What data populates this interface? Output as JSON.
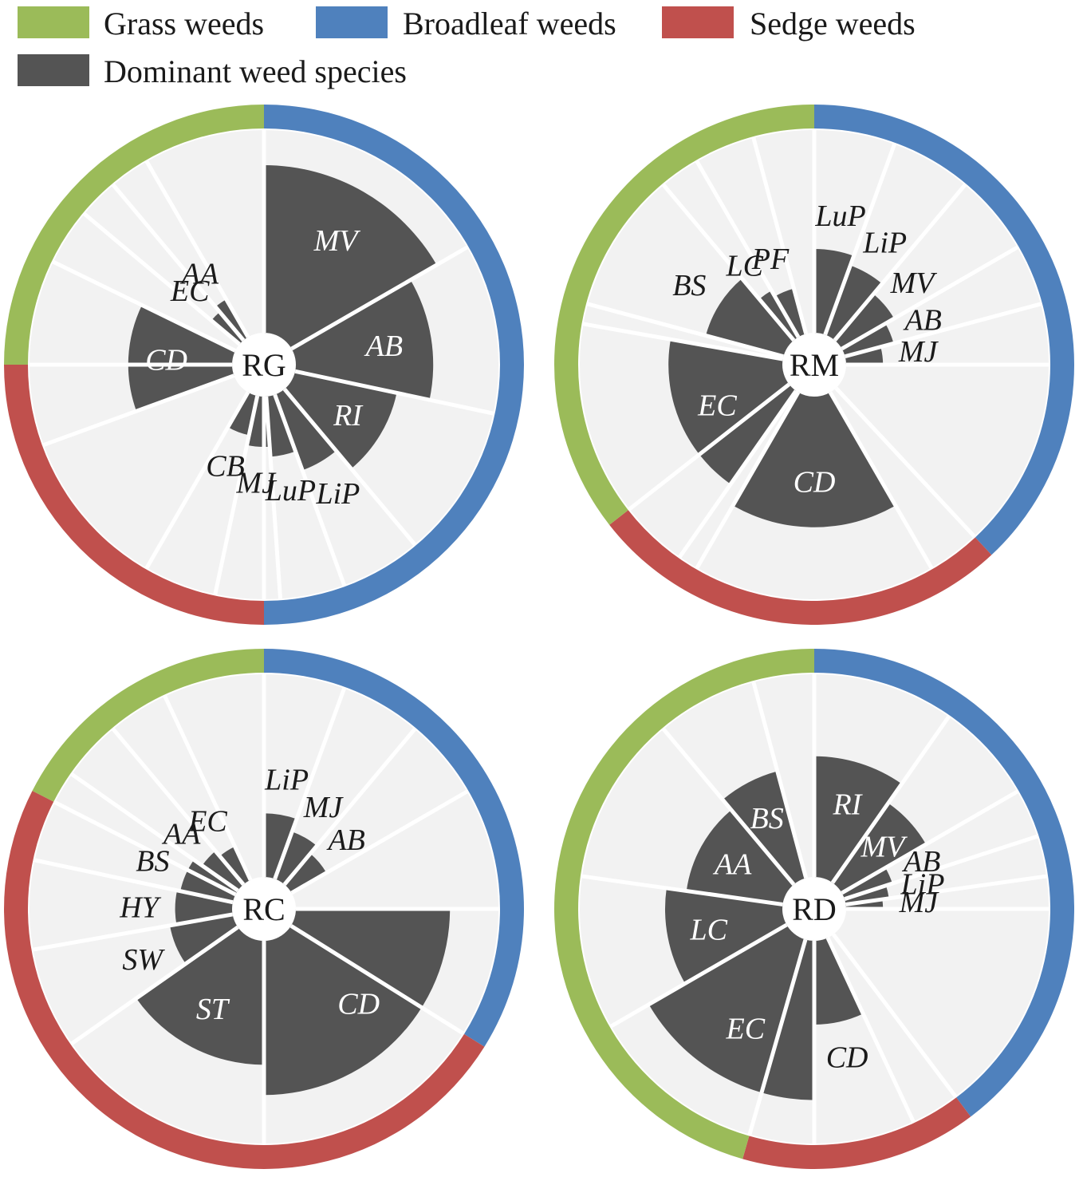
{
  "legend": [
    {
      "label": "Grass weeds",
      "color": "#9bbb59"
    },
    {
      "label": "Broadleaf weeds",
      "color": "#4f81bd"
    },
    {
      "label": "Sedge weeds",
      "color": "#c0504d"
    },
    {
      "label": "Dominant weed species",
      "color": "#545454"
    }
  ],
  "colors": {
    "grass": "#9bbb59",
    "broadleaf": "#4f81bd",
    "sedge": "#c0504d",
    "bar": "#545454",
    "background": "#f2f2f2",
    "divider": "#ffffff"
  },
  "chart_data": [
    {
      "type": "polar-bar",
      "center_label": "RG",
      "bar_range": [
        0,
        1
      ],
      "groups": [
        {
          "type": "broadleaf",
          "start_deg": 0,
          "end_deg": 180
        },
        {
          "type": "sedge",
          "start_deg": 180,
          "end_deg": 270
        },
        {
          "type": "grass",
          "start_deg": 270,
          "end_deg": 360
        }
      ],
      "slices": [
        {
          "label": "MV",
          "start_deg": 0,
          "end_deg": 60,
          "value": 1.0
        },
        {
          "label": "AB",
          "start_deg": 60,
          "end_deg": 102,
          "value": 0.82
        },
        {
          "label": "RI",
          "start_deg": 102,
          "end_deg": 140,
          "value": 0.62
        },
        {
          "label": "LiP",
          "start_deg": 140,
          "end_deg": 160,
          "value": 0.48
        },
        {
          "label": "LuP",
          "start_deg": 160,
          "end_deg": 176,
          "value": 0.36
        },
        {
          "label": "MJ",
          "start_deg": 176,
          "end_deg": 192,
          "value": 0.3
        },
        {
          "label": "CB",
          "start_deg": 192,
          "end_deg": 210,
          "value": 0.24
        },
        {
          "label": "CD",
          "start_deg": 250,
          "end_deg": 296,
          "value": 0.62
        },
        {
          "label": "EC",
          "start_deg": 310,
          "end_deg": 320,
          "value": 0.22
        },
        {
          "label": "AA",
          "start_deg": 320,
          "end_deg": 330,
          "value": 0.26
        }
      ]
    },
    {
      "type": "polar-bar",
      "center_label": "RM",
      "bar_range": [
        0,
        1
      ],
      "groups": [
        {
          "type": "broadleaf",
          "start_deg": 0,
          "end_deg": 137
        },
        {
          "type": "sedge",
          "start_deg": 137,
          "end_deg": 232
        },
        {
          "type": "grass",
          "start_deg": 232,
          "end_deg": 360
        }
      ],
      "slices": [
        {
          "label": "LuP",
          "start_deg": 0,
          "end_deg": 20,
          "value": 0.5
        },
        {
          "label": "LiP",
          "start_deg": 20,
          "end_deg": 40,
          "value": 0.44
        },
        {
          "label": "MV",
          "start_deg": 40,
          "end_deg": 60,
          "value": 0.36
        },
        {
          "label": "AB",
          "start_deg": 60,
          "end_deg": 75,
          "value": 0.3
        },
        {
          "label": "MJ",
          "start_deg": 75,
          "end_deg": 90,
          "value": 0.22
        },
        {
          "label": "CD",
          "start_deg": 150,
          "end_deg": 210,
          "value": 0.78
        },
        {
          "label": "EC",
          "start_deg": 215,
          "end_deg": 280,
          "value": 0.68
        },
        {
          "label": "BS",
          "start_deg": 285,
          "end_deg": 320,
          "value": 0.48
        },
        {
          "label": "LC",
          "start_deg": 320,
          "end_deg": 330,
          "value": 0.32
        },
        {
          "label": "PF",
          "start_deg": 330,
          "end_deg": 345,
          "value": 0.28
        }
      ]
    },
    {
      "type": "polar-bar",
      "center_label": "RC",
      "bar_range": [
        0,
        1
      ],
      "groups": [
        {
          "type": "broadleaf",
          "start_deg": 0,
          "end_deg": 122
        },
        {
          "type": "sedge",
          "start_deg": 122,
          "end_deg": 297
        },
        {
          "type": "grass",
          "start_deg": 297,
          "end_deg": 360
        }
      ],
      "slices": [
        {
          "label": "LiP",
          "start_deg": 0,
          "end_deg": 20,
          "value": 0.38
        },
        {
          "label": "MJ",
          "start_deg": 20,
          "end_deg": 40,
          "value": 0.3
        },
        {
          "label": "AB",
          "start_deg": 40,
          "end_deg": 60,
          "value": 0.24
        },
        {
          "label": "CD",
          "start_deg": 90,
          "end_deg": 180,
          "value": 0.92
        },
        {
          "label": "ST",
          "start_deg": 180,
          "end_deg": 235,
          "value": 0.74
        },
        {
          "label": "SW",
          "start_deg": 235,
          "end_deg": 260,
          "value": 0.38
        },
        {
          "label": "HY",
          "start_deg": 260,
          "end_deg": 282,
          "value": 0.34
        },
        {
          "label": "BS",
          "start_deg": 282,
          "end_deg": 305,
          "value": 0.32
        },
        {
          "label": "AA",
          "start_deg": 305,
          "end_deg": 320,
          "value": 0.26
        },
        {
          "label": "EC",
          "start_deg": 320,
          "end_deg": 335,
          "value": 0.22
        }
      ]
    },
    {
      "type": "polar-bar",
      "center_label": "RD",
      "bar_range": [
        0,
        1
      ],
      "groups": [
        {
          "type": "broadleaf",
          "start_deg": 0,
          "end_deg": 143
        },
        {
          "type": "sedge",
          "start_deg": 143,
          "end_deg": 196
        },
        {
          "type": "grass",
          "start_deg": 196,
          "end_deg": 360
        }
      ],
      "slices": [
        {
          "label": "RI",
          "start_deg": 0,
          "end_deg": 35,
          "value": 0.72
        },
        {
          "label": "MV",
          "start_deg": 35,
          "end_deg": 60,
          "value": 0.58
        },
        {
          "label": "AB",
          "start_deg": 60,
          "end_deg": 72,
          "value": 0.3
        },
        {
          "label": "LiP",
          "start_deg": 72,
          "end_deg": 82,
          "value": 0.26
        },
        {
          "label": "MJ",
          "start_deg": 82,
          "end_deg": 90,
          "value": 0.22
        },
        {
          "label": "CD",
          "start_deg": 155,
          "end_deg": 180,
          "value": 0.5
        },
        {
          "label": "EC",
          "start_deg": 180,
          "end_deg": 240,
          "value": 0.95
        },
        {
          "label": "LC",
          "start_deg": 240,
          "end_deg": 278,
          "value": 0.7
        },
        {
          "label": "AA",
          "start_deg": 278,
          "end_deg": 320,
          "value": 0.58
        },
        {
          "label": "BS",
          "start_deg": 320,
          "end_deg": 345,
          "value": 0.66
        }
      ]
    }
  ]
}
